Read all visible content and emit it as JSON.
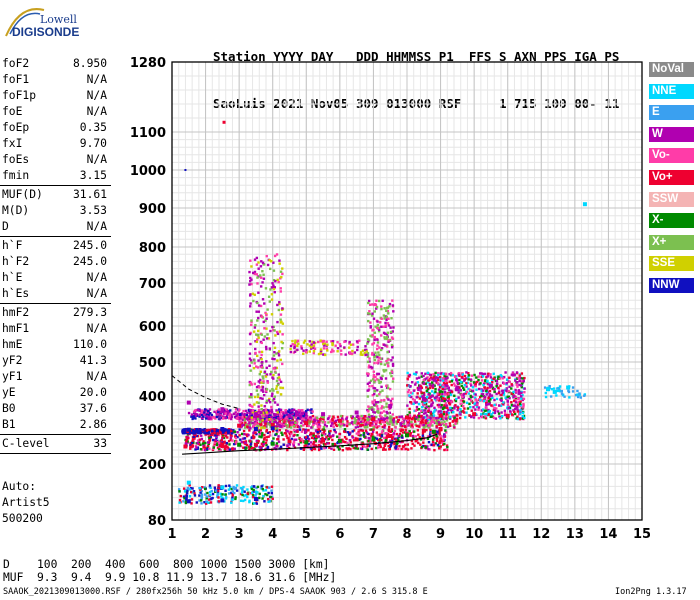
{
  "logo": {
    "line1": "Lowell",
    "line2": "DIGISONDE"
  },
  "header": {
    "line1": "Station YYYY DAY   DDD HHMMSS P1  FFS S AXN PPS IGA PS",
    "line2": "SaoLuis 2021 Nov05 309 013000 RSF     1 715 100 00- 11"
  },
  "params": [
    {
      "label": "foF2",
      "value": "8.950"
    },
    {
      "label": "foF1",
      "value": "N/A"
    },
    {
      "label": "foF1p",
      "value": "N/A"
    },
    {
      "label": "foE",
      "value": "N/A"
    },
    {
      "label": "foEp",
      "value": "0.35"
    },
    {
      "label": "fxI",
      "value": "9.70"
    },
    {
      "label": "foEs",
      "value": "N/A"
    },
    {
      "label": "fmin",
      "value": "3.15"
    },
    {
      "label": "MUF(D)",
      "value": "31.61"
    },
    {
      "label": "M(D)",
      "value": "3.53"
    },
    {
      "label": "D",
      "value": "N/A"
    },
    {
      "label": "h`F",
      "value": "245.0"
    },
    {
      "label": "h`F2",
      "value": "245.0"
    },
    {
      "label": "h`E",
      "value": "N/A"
    },
    {
      "label": "h`Es",
      "value": "N/A"
    },
    {
      "label": "hmF2",
      "value": "279.3"
    },
    {
      "label": "hmF1",
      "value": "N/A"
    },
    {
      "label": "hmE",
      "value": "110.0"
    },
    {
      "label": "yF2",
      "value": "41.3"
    },
    {
      "label": "yF1",
      "value": "N/A"
    },
    {
      "label": "yE",
      "value": "20.0"
    },
    {
      "label": "B0",
      "value": "37.6"
    },
    {
      "label": "B1",
      "value": "2.86"
    },
    {
      "label": "C-level",
      "value": "33"
    }
  ],
  "extra": {
    "auto": "Auto:",
    "artist": "Artist5",
    "version_code": "500200"
  },
  "legend": [
    {
      "label": "NoVal",
      "color": "#8a8a8a"
    },
    {
      "label": "NNE",
      "color": "#00d8ff"
    },
    {
      "label": "E",
      "color": "#3aa0f0"
    },
    {
      "label": "W",
      "color": "#b000b0"
    },
    {
      "label": "Vo-",
      "color": "#ff3ca8"
    },
    {
      "label": "Vo+",
      "color": "#ee0030"
    },
    {
      "label": "SSW",
      "color": "#f4b4b4"
    },
    {
      "label": "X-",
      "color": "#008a00"
    },
    {
      "label": "X+",
      "color": "#7cc050"
    },
    {
      "label": "SSE",
      "color": "#d0d000"
    },
    {
      "label": "NNW",
      "color": "#1010c0"
    }
  ],
  "footer": {
    "d_row": "D    100  200  400  600  800 1000 1500 3000 [km]",
    "muf_row": "MUF  9.3  9.4  9.9 10.8 11.9 13.7 18.6 31.6 [MHz]",
    "info": "SAAOK_2021309013000.RSF / 280fx256h 50 kHz 5.0 km / DPS-4 SAAOK 903 / 2.6 S 315.8 E",
    "version": "Ion2Png 1.3.17"
  },
  "chart_data": {
    "type": "scatter",
    "x_ticks": [
      "1",
      "2",
      "3",
      "4",
      "5",
      "6",
      "7",
      "8",
      "9",
      "10",
      "11",
      "12",
      "13",
      "14",
      "15"
    ],
    "y_ticks": [
      "80",
      "200",
      "300",
      "400",
      "500",
      "600",
      "700",
      "800",
      "900",
      "1000",
      "1100",
      "1280"
    ],
    "xlim": [
      1,
      15
    ],
    "y_scale": "nonlinear (virtual height, km)",
    "grid": true,
    "profile_curve": [
      [
        1.3,
        228
      ],
      [
        2,
        232
      ],
      [
        3,
        238
      ],
      [
        4,
        242
      ],
      [
        5,
        247
      ],
      [
        6,
        252
      ],
      [
        7,
        258
      ],
      [
        8,
        267
      ],
      [
        8.6,
        275
      ],
      [
        8.9,
        285
      ]
    ],
    "profile_dashed": [
      [
        1.0,
        460
      ],
      [
        1.5,
        420
      ],
      [
        2,
        395
      ],
      [
        2.5,
        375
      ],
      [
        3,
        362
      ]
    ],
    "traces": [
      {
        "name": "Vo+",
        "points": [
          [
            1.4,
            250
          ],
          [
            2.5,
            255
          ],
          [
            3.5,
            255
          ],
          [
            4.5,
            265
          ],
          [
            5.5,
            268
          ],
          [
            6.5,
            270
          ],
          [
            7.5,
            280
          ],
          [
            8,
            285
          ],
          [
            8.5,
            295
          ],
          [
            9,
            300
          ]
        ]
      },
      {
        "name": "Vo+",
        "points": [
          [
            3,
            310
          ],
          [
            4,
            312
          ],
          [
            5,
            318
          ],
          [
            6,
            325
          ],
          [
            7,
            330
          ],
          [
            8,
            335
          ],
          [
            9,
            340
          ],
          [
            10,
            345
          ],
          [
            11,
            340
          ]
        ]
      },
      {
        "name": "W",
        "points": [
          [
            1.5,
            380
          ],
          [
            2.5,
            360
          ],
          [
            3.5,
            345
          ],
          [
            4.5,
            340
          ],
          [
            5.5,
            345
          ],
          [
            6.5,
            350
          ],
          [
            7.5,
            370
          ],
          [
            8.5,
            390
          ],
          [
            9.5,
            420
          ],
          [
            10.5,
            430
          ]
        ]
      },
      {
        "name": "NNW",
        "points": [
          [
            1.5,
            298
          ],
          [
            2.5,
            300
          ],
          [
            3.5,
            300
          ],
          [
            4,
            302
          ],
          [
            1.5,
            120
          ],
          [
            2.5,
            122
          ],
          [
            3.5,
            125
          ]
        ]
      },
      {
        "name": "X-",
        "points": [
          [
            3,
            255
          ],
          [
            4,
            258
          ],
          [
            5,
            262
          ],
          [
            6,
            266
          ],
          [
            7,
            270
          ],
          [
            8,
            282
          ],
          [
            8.8,
            292
          ]
        ]
      },
      {
        "name": "NNE",
        "points": [
          [
            12.2,
            420
          ],
          [
            12.4,
            412
          ],
          [
            12.8,
            425
          ],
          [
            13.3,
            910
          ],
          [
            1.5,
            160
          ],
          [
            2.5,
            150
          ]
        ]
      }
    ]
  }
}
